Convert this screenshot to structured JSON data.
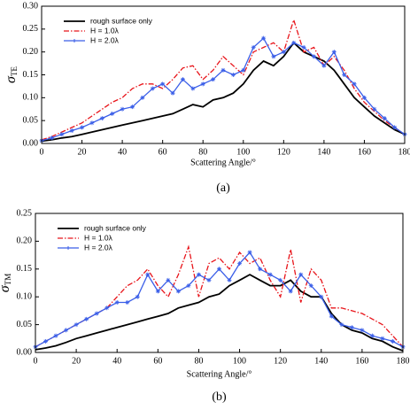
{
  "chart_data": [
    {
      "type": "line",
      "ylabel": "σ",
      "ylabel_sub": "TE",
      "xlabel": "Scattering Angle/°",
      "caption": "(a)",
      "legend": "upper left",
      "x": [
        0,
        5,
        10,
        15,
        20,
        25,
        30,
        35,
        40,
        45,
        50,
        55,
        60,
        65,
        70,
        75,
        80,
        85,
        90,
        95,
        100,
        105,
        110,
        115,
        120,
        125,
        130,
        135,
        140,
        145,
        150,
        155,
        160,
        165,
        170,
        175,
        180
      ],
      "xlim": [
        0,
        180
      ],
      "xticks": [
        0,
        20,
        40,
        60,
        80,
        100,
        120,
        140,
        160,
        180
      ],
      "ylim": [
        0,
        0.3
      ],
      "yticks": [
        {
          "value": 0,
          "label": "0.00"
        },
        {
          "value": 0.05,
          "label": "0.05"
        },
        {
          "value": 0.1,
          "label": "0.10"
        },
        {
          "value": 0.15,
          "label": "0.15"
        },
        {
          "value": 0.2,
          "label": "0.20"
        },
        {
          "value": 0.25,
          "label": "0.25"
        },
        {
          "value": 0.3,
          "label": "0.30"
        }
      ],
      "series": [
        {
          "name": "rough surface only",
          "color": "#000000",
          "linestyle": "solid",
          "values": [
            0.005,
            0.008,
            0.012,
            0.015,
            0.02,
            0.025,
            0.03,
            0.035,
            0.04,
            0.045,
            0.05,
            0.055,
            0.06,
            0.065,
            0.075,
            0.085,
            0.08,
            0.095,
            0.1,
            0.11,
            0.13,
            0.16,
            0.18,
            0.17,
            0.19,
            0.22,
            0.2,
            0.19,
            0.18,
            0.16,
            0.13,
            0.1,
            0.08,
            0.06,
            0.045,
            0.03,
            0.02
          ]
        },
        {
          "name": "H = 1.0λ",
          "color": "#e8141a",
          "linestyle": "dashdot",
          "values": [
            0.008,
            0.015,
            0.025,
            0.035,
            0.045,
            0.06,
            0.075,
            0.09,
            0.1,
            0.12,
            0.13,
            0.13,
            0.12,
            0.14,
            0.165,
            0.17,
            0.14,
            0.16,
            0.19,
            0.17,
            0.15,
            0.2,
            0.21,
            0.22,
            0.2,
            0.27,
            0.2,
            0.21,
            0.17,
            0.19,
            0.16,
            0.12,
            0.09,
            0.07,
            0.05,
            0.035,
            0.02
          ]
        },
        {
          "name": "H = 2.0λ",
          "color": "#3a5ee8",
          "linestyle": "solid",
          "marker": "star",
          "values": [
            0.006,
            0.012,
            0.02,
            0.028,
            0.035,
            0.045,
            0.055,
            0.065,
            0.075,
            0.08,
            0.1,
            0.12,
            0.13,
            0.11,
            0.14,
            0.12,
            0.13,
            0.14,
            0.16,
            0.15,
            0.16,
            0.21,
            0.23,
            0.19,
            0.2,
            0.22,
            0.21,
            0.19,
            0.17,
            0.2,
            0.15,
            0.13,
            0.1,
            0.075,
            0.055,
            0.035,
            0.02
          ]
        }
      ]
    },
    {
      "type": "line",
      "ylabel": "σ",
      "ylabel_sub": "TM",
      "xlabel": "Scattering Angle/°",
      "caption": "(b)",
      "legend": "upper left",
      "x": [
        0,
        5,
        10,
        15,
        20,
        25,
        30,
        35,
        40,
        45,
        50,
        55,
        60,
        65,
        70,
        75,
        80,
        85,
        90,
        95,
        100,
        105,
        110,
        115,
        120,
        125,
        130,
        135,
        140,
        145,
        150,
        155,
        160,
        165,
        170,
        175,
        180
      ],
      "xlim": [
        0,
        180
      ],
      "xticks": [
        0,
        20,
        40,
        60,
        80,
        100,
        120,
        140,
        160,
        180
      ],
      "ylim": [
        0,
        0.25
      ],
      "yticks": [
        {
          "value": 0,
          "label": "0.00"
        },
        {
          "value": 0.05,
          "label": "0.05"
        },
        {
          "value": 0.1,
          "label": "0.10"
        },
        {
          "value": 0.15,
          "label": "0.15"
        },
        {
          "value": 0.2,
          "label": "0.20"
        },
        {
          "value": 0.25,
          "label": "0.25"
        }
      ],
      "series": [
        {
          "name": "rough surface only",
          "color": "#000000",
          "linestyle": "solid",
          "values": [
            0.005,
            0.008,
            0.012,
            0.018,
            0.025,
            0.03,
            0.035,
            0.04,
            0.045,
            0.05,
            0.055,
            0.06,
            0.065,
            0.07,
            0.08,
            0.085,
            0.09,
            0.1,
            0.105,
            0.12,
            0.13,
            0.14,
            0.13,
            0.12,
            0.12,
            0.13,
            0.11,
            0.1,
            0.1,
            0.07,
            0.05,
            0.04,
            0.035,
            0.025,
            0.02,
            0.01,
            0.003
          ]
        },
        {
          "name": "H = 1.0λ",
          "color": "#e8141a",
          "linestyle": "dashdot",
          "values": [
            0.01,
            0.02,
            0.03,
            0.04,
            0.05,
            0.06,
            0.07,
            0.08,
            0.1,
            0.12,
            0.13,
            0.15,
            0.12,
            0.1,
            0.14,
            0.19,
            0.1,
            0.16,
            0.17,
            0.15,
            0.18,
            0.16,
            0.17,
            0.13,
            0.1,
            0.185,
            0.09,
            0.15,
            0.13,
            0.08,
            0.08,
            0.075,
            0.07,
            0.06,
            0.05,
            0.03,
            0.01
          ]
        },
        {
          "name": "H = 2.0λ",
          "color": "#3a5ee8",
          "linestyle": "solid",
          "marker": "star",
          "values": [
            0.01,
            0.02,
            0.03,
            0.04,
            0.05,
            0.06,
            0.07,
            0.08,
            0.09,
            0.09,
            0.1,
            0.14,
            0.11,
            0.13,
            0.11,
            0.12,
            0.14,
            0.13,
            0.15,
            0.13,
            0.16,
            0.18,
            0.15,
            0.14,
            0.13,
            0.11,
            0.14,
            0.12,
            0.1,
            0.065,
            0.05,
            0.045,
            0.04,
            0.03,
            0.025,
            0.02,
            0.01
          ]
        }
      ]
    }
  ]
}
